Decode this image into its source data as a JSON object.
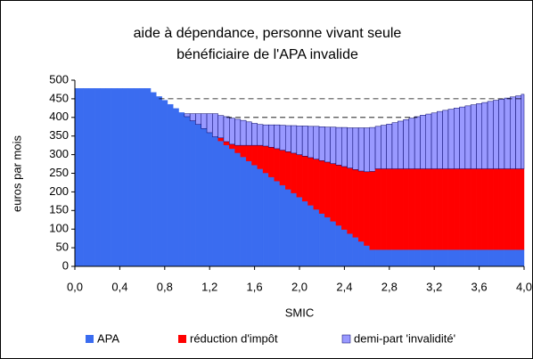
{
  "chart_data": {
    "type": "stacked_bar",
    "title_lines": [
      "aide à dépendance, personne vivant seule",
      "bénéficiaire de l'APA invalide"
    ],
    "x_label": "SMIC",
    "y_label": "euros par mois",
    "x": [
      0,
      0.05,
      0.1,
      0.15,
      0.2,
      0.25,
      0.3,
      0.35,
      0.4,
      0.45,
      0.5,
      0.55,
      0.6,
      0.65,
      0.7,
      0.75,
      0.8,
      0.85,
      0.9,
      0.95,
      1.0,
      1.05,
      1.1,
      1.15,
      1.2,
      1.25,
      1.3,
      1.35,
      1.4,
      1.45,
      1.5,
      1.55,
      1.6,
      1.65,
      1.7,
      1.75,
      1.8,
      1.85,
      1.9,
      1.95,
      2.0,
      2.05,
      2.1,
      2.15,
      2.2,
      2.25,
      2.3,
      2.35,
      2.4,
      2.45,
      2.5,
      2.55,
      2.6,
      2.65,
      2.7,
      2.75,
      2.8,
      2.85,
      2.9,
      2.95,
      3.0,
      3.05,
      3.1,
      3.15,
      3.2,
      3.25,
      3.3,
      3.35,
      3.4,
      3.45,
      3.5,
      3.55,
      3.6,
      3.65,
      3.7,
      3.75,
      3.8,
      3.85,
      3.9,
      3.95,
      4.0
    ],
    "series": [
      {
        "name": "APA",
        "color": "#3a6cf0",
        "values": [
          478,
          478,
          478,
          478,
          478,
          478,
          478,
          478,
          478,
          478,
          478,
          478,
          478,
          478,
          467,
          456,
          446,
          435,
          424,
          413,
          402,
          391,
          381,
          370,
          359,
          348,
          337,
          326,
          316,
          305,
          294,
          283,
          272,
          262,
          251,
          240,
          229,
          218,
          207,
          197,
          186,
          175,
          164,
          153,
          142,
          132,
          121,
          110,
          99,
          88,
          78,
          67,
          56,
          45,
          45,
          45,
          45,
          45,
          45,
          45,
          45,
          45,
          45,
          45,
          45,
          45,
          45,
          45,
          45,
          45,
          45,
          45,
          45,
          45,
          45,
          45,
          45,
          45,
          45,
          45,
          45
        ]
      },
      {
        "name": "réduction d'impôt",
        "color": "#ff0000",
        "values": [
          0,
          0,
          0,
          0,
          0,
          0,
          0,
          0,
          0,
          0,
          0,
          0,
          0,
          0,
          0,
          0,
          0,
          0,
          0,
          0,
          0,
          0,
          0,
          0,
          0,
          0,
          8,
          9,
          12,
          20,
          31,
          42,
          53,
          63,
          72,
          80,
          87,
          94,
          101,
          107,
          114,
          121,
          128,
          135,
          142,
          148,
          155,
          162,
          169,
          176,
          182,
          189,
          198,
          210,
          217,
          217,
          217,
          217,
          217,
          217,
          217,
          217,
          217,
          217,
          217,
          217,
          217,
          217,
          217,
          217,
          217,
          217,
          217,
          217,
          217,
          217,
          217,
          217,
          217,
          217,
          217
        ]
      },
      {
        "name": "demi-part 'invalidité'",
        "color": "#9999ff",
        "stroke": "#000066",
        "values": [
          0,
          0,
          0,
          0,
          0,
          0,
          0,
          0,
          0,
          0,
          0,
          0,
          0,
          0,
          0,
          0,
          0,
          0,
          0,
          0,
          8,
          19,
          29,
          40,
          51,
          62,
          60,
          67,
          70,
          70,
          67,
          63,
          59,
          56,
          57,
          60,
          64,
          67,
          70,
          74,
          77,
          81,
          84,
          88,
          91,
          94,
          98,
          101,
          105,
          108,
          112,
          116,
          118,
          118,
          114,
          117,
          120,
          124,
          128,
          132,
          136,
          140,
          144,
          147,
          150,
          154,
          157,
          160,
          163,
          166,
          169,
          172,
          175,
          178,
          181,
          184,
          187,
          190,
          193,
          196,
          200
        ]
      }
    ],
    "reference_lines": [
      {
        "y": 450,
        "x": [
          0.75,
          4.0
        ]
      },
      {
        "y": 400,
        "x": [
          1.35,
          3.05
        ]
      }
    ],
    "xlim": [
      0,
      4
    ],
    "ylim": [
      0,
      500
    ],
    "xticks": [
      {
        "value": 0,
        "label": "0,0"
      },
      {
        "value": 0.4,
        "label": "0,4"
      },
      {
        "value": 0.8,
        "label": "0,8"
      },
      {
        "value": 1.2,
        "label": "1,2"
      },
      {
        "value": 1.6,
        "label": "1,6"
      },
      {
        "value": 2.0,
        "label": "2,0"
      },
      {
        "value": 2.4,
        "label": "2,4"
      },
      {
        "value": 2.8,
        "label": "2,8"
      },
      {
        "value": 3.2,
        "label": "3,2"
      },
      {
        "value": 3.6,
        "label": "3,6"
      },
      {
        "value": 4.0,
        "label": "4,0"
      }
    ],
    "yticks": [
      0,
      50,
      100,
      150,
      200,
      250,
      300,
      350,
      400,
      450,
      500
    ],
    "legend": "bottom"
  }
}
